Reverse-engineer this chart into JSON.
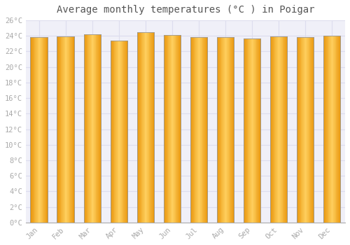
{
  "title": "Average monthly temperatures (°C ) in Poigar",
  "months": [
    "Jan",
    "Feb",
    "Mar",
    "Apr",
    "May",
    "Jun",
    "Jul",
    "Aug",
    "Sep",
    "Oct",
    "Nov",
    "Dec"
  ],
  "temperatures": [
    23.8,
    23.9,
    24.2,
    23.4,
    24.5,
    24.1,
    23.8,
    23.8,
    23.7,
    23.9,
    23.8,
    24.0
  ],
  "bar_color_main": "#FFBB33",
  "bar_color_light": "#FFD060",
  "bar_color_dark": "#E8950A",
  "bar_edge_color": "#999999",
  "ylim": [
    0,
    26
  ],
  "yticks": [
    0,
    2,
    4,
    6,
    8,
    10,
    12,
    14,
    16,
    18,
    20,
    22,
    24,
    26
  ],
  "ytick_labels": [
    "0°C",
    "2°C",
    "4°C",
    "6°C",
    "8°C",
    "10°C",
    "12°C",
    "14°C",
    "16°C",
    "18°C",
    "20°C",
    "22°C",
    "24°C",
    "26°C"
  ],
  "plot_bg_color": "#f0f0f8",
  "fig_bg_color": "#ffffff",
  "grid_color": "#ddddee",
  "title_fontsize": 10,
  "tick_fontsize": 7.5,
  "font_family": "monospace",
  "tick_color": "#aaaaaa",
  "bar_width": 0.65
}
